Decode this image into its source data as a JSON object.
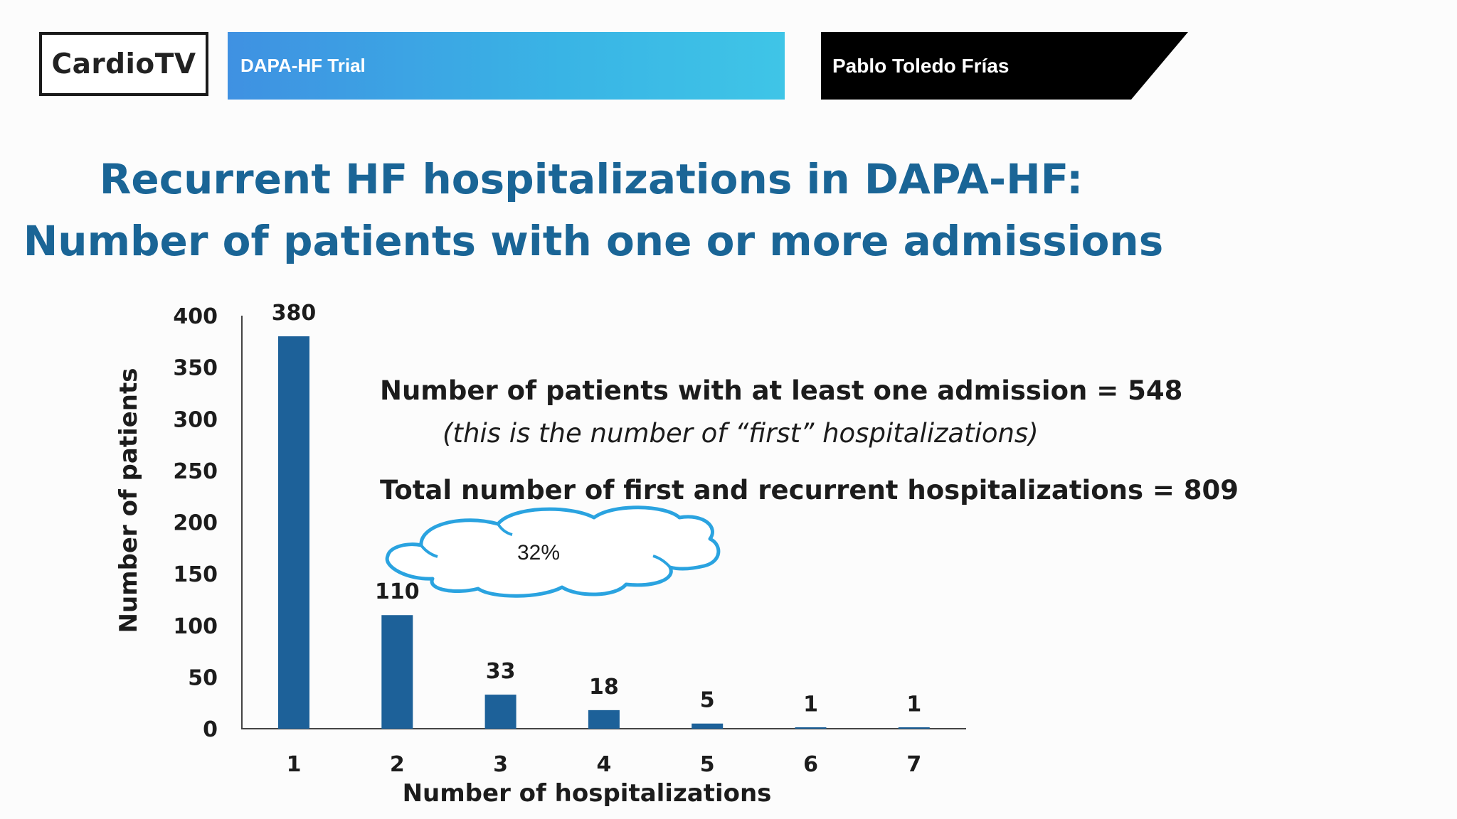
{
  "header": {
    "logo": "CardioTV",
    "trial_label": "DAPA-HF Trial",
    "speaker": "Pablo Toledo Frías"
  },
  "slide": {
    "title_line1": "Recurrent HF hospitalizations in DAPA-HF:",
    "title_line2": "Number of patients with one or more admissions",
    "note_line1": "Number of patients with at least one admission = 548",
    "note_line2": "(this is the number of “first” hospitalizations)",
    "note_line3": "Total number of first and recurrent hospitalizations = 809",
    "cloud_text": "32%"
  },
  "colors": {
    "bar": "#1d6199",
    "title": "#1a6596",
    "cloud_stroke": "#2aa3e0"
  },
  "chart_data": {
    "type": "bar",
    "categories": [
      "1",
      "2",
      "3",
      "4",
      "5",
      "6",
      "7"
    ],
    "values": [
      380,
      110,
      33,
      18,
      5,
      1,
      1
    ],
    "data_labels": [
      "380",
      "110",
      "33",
      "18",
      "5",
      "1",
      "1"
    ],
    "xlabel": "Number of hospitalizations",
    "ylabel": "Number of patients",
    "ylim": [
      0,
      400
    ],
    "yticks": [
      0,
      50,
      100,
      150,
      200,
      250,
      300,
      350,
      400
    ],
    "grid": false,
    "legend": "none"
  }
}
